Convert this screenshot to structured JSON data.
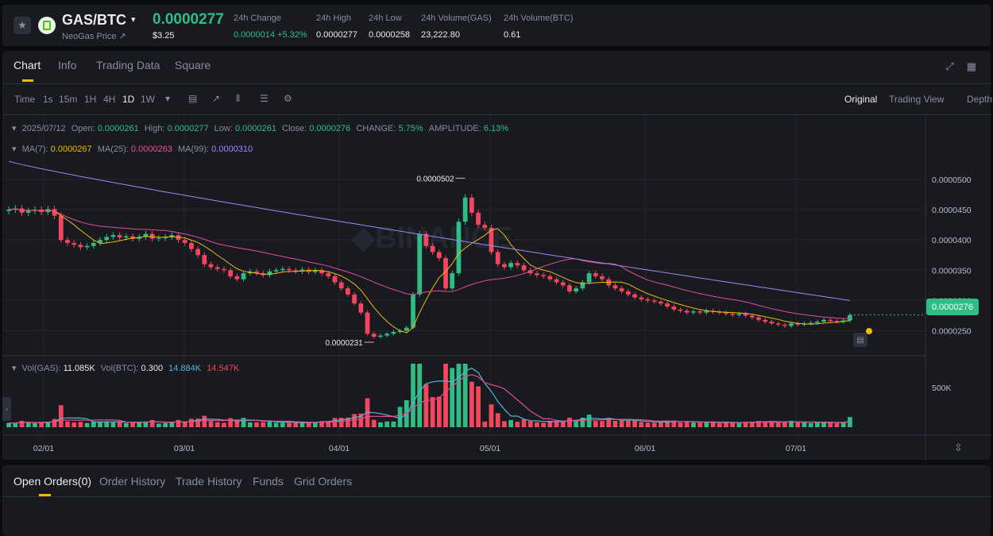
{
  "ticker": {
    "pair": "GAS/BTC",
    "subname": "NeoGas Price ↗",
    "last_price": "0.0000277",
    "fiat_price": "$3.25",
    "stats": [
      {
        "label": "24h Change",
        "value": "0.0000014 +5.32%",
        "up": true
      },
      {
        "label": "24h High",
        "value": "0.0000277",
        "up": false
      },
      {
        "label": "24h Low",
        "value": "0.0000258",
        "up": false
      },
      {
        "label": "24h Volume(GAS)",
        "value": "23,222.80",
        "up": false
      },
      {
        "label": "24h Volume(BTC)",
        "value": "0.61",
        "up": false
      }
    ]
  },
  "tabs": [
    "Chart",
    "Info",
    "Trading Data",
    "Square"
  ],
  "toolbar": {
    "intervals": [
      "Time",
      "1s",
      "15m",
      "1H",
      "4H",
      "1D",
      "1W"
    ],
    "active_interval": "1D",
    "views": [
      "Original",
      "Trading View",
      "Depth"
    ],
    "active_view": "Original"
  },
  "info": {
    "date": "2025/07/12",
    "open_label": "Open:",
    "open": "0.0000261",
    "high_label": "High:",
    "high": "0.0000277",
    "low_label": "Low:",
    "low": "0.0000261",
    "close_label": "Close:",
    "close": "0.0000276",
    "change_label": "CHANGE:",
    "change": "5.75%",
    "amplitude_label": "AMPLITUDE:",
    "amplitude": "6.13%"
  },
  "ma": {
    "ma7_label": "MA(7):",
    "ma7": "0.0000267",
    "ma25_label": "MA(25):",
    "ma25": "0.0000263",
    "ma99_label": "MA(99):",
    "ma99": "0.0000310"
  },
  "vol": {
    "gas_label": "Vol(GAS):",
    "gas": "11.085K",
    "btc_label": "Vol(BTC):",
    "btc": "0.300",
    "ma1": "14.884K",
    "ma2": "14.547K"
  },
  "chart_data": {
    "type": "candlestick",
    "y_ticks": [
      "0.0000500",
      "0.0000450",
      "0.0000400",
      "0.0000350",
      "0.0000300",
      "0.0000250"
    ],
    "x_ticks": [
      "02/01",
      "03/01",
      "04/01",
      "05/01",
      "06/01",
      "07/01"
    ],
    "current_price": "0.0000276",
    "high_marker": "0.0000502",
    "low_marker": "0.0000231",
    "vol_tick": "500K",
    "ylim": [
      2.1e-05,
      5.55e-05
    ],
    "close_series": [
      4.5e-05,
      4.52e-05,
      4.45e-05,
      4.48e-05,
      4.5e-05,
      4.46e-05,
      4.51e-05,
      4.4e-05,
      4e-05,
      3.95e-05,
      3.92e-05,
      3.88e-05,
      3.9e-05,
      3.95e-05,
      4e-05,
      4.05e-05,
      4.08e-05,
      4.04e-05,
      4.06e-05,
      4.02e-05,
      4.05e-05,
      4.1e-05,
      4.02e-05,
      4.03e-05,
      4.05e-05,
      4.08e-05,
      4e-05,
      3.95e-05,
      3.85e-05,
      3.75e-05,
      3.6e-05,
      3.55e-05,
      3.52e-05,
      3.5e-05,
      3.4e-05,
      3.35e-05,
      3.45e-05,
      3.48e-05,
      3.45e-05,
      3.42e-05,
      3.48e-05,
      3.5e-05,
      3.52e-05,
      3.5e-05,
      3.48e-05,
      3.51e-05,
      3.47e-05,
      3.5e-05,
      3.45e-05,
      3.4e-05,
      3.3e-05,
      3.2e-05,
      3.1e-05,
      2.95e-05,
      2.8e-05,
      2.45e-05,
      2.4e-05,
      2.42e-05,
      2.45e-05,
      2.48e-05,
      2.5e-05,
      2.55e-05,
      3.1e-05,
      4.1e-05,
      3.9e-05,
      3.8e-05,
      3.7e-05,
      3.2e-05,
      3.45e-05,
      4.3e-05,
      4.7e-05,
      4.45e-05,
      4.25e-05,
      4.2e-05,
      3.8e-05,
      3.6e-05,
      3.55e-05,
      3.62e-05,
      3.58e-05,
      3.5e-05,
      3.45e-05,
      3.42e-05,
      3.4e-05,
      3.35e-05,
      3.3e-05,
      3.25e-05,
      3.15e-05,
      3.2e-05,
      3.3e-05,
      3.45e-05,
      3.4e-05,
      3.35e-05,
      3.25e-05,
      3.2e-05,
      3.15e-05,
      3.1e-05,
      3.05e-05,
      3.02e-05,
      3e-05,
      2.98e-05,
      2.95e-05,
      2.9e-05,
      2.85e-05,
      2.83e-05,
      2.8e-05,
      2.82e-05,
      2.8e-05,
      2.83e-05,
      2.81e-05,
      2.8e-05,
      2.78e-05,
      2.76e-05,
      2.78e-05,
      2.75e-05,
      2.72e-05,
      2.68e-05,
      2.65e-05,
      2.62e-05,
      2.6e-05,
      2.58e-05,
      2.62e-05,
      2.6e-05,
      2.62e-05,
      2.63e-05,
      2.65e-05,
      2.68e-05,
      2.66e-05,
      2.65e-05,
      2.67e-05,
      2.76e-05
    ]
  },
  "order_tabs": [
    "Open Orders(0)",
    "Order History",
    "Trade History",
    "Funds",
    "Grid Orders"
  ],
  "colors": {
    "up": "#2ebd85",
    "down": "#f6465d",
    "accent": "#f0b90b",
    "ma7": "#f0b90b",
    "ma25": "#e34f8f",
    "ma99": "#a285f3"
  }
}
